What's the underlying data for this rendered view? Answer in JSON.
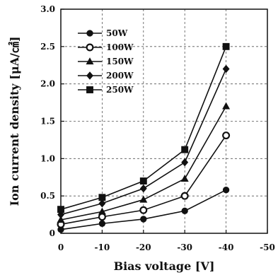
{
  "chart_data": {
    "type": "line",
    "title": "",
    "xlabel": "Bias voltage [V]",
    "ylabel": "Ion current density [μA/㎠]",
    "x": [
      0,
      -10,
      -20,
      -30,
      -40
    ],
    "xlim": [
      0,
      -50
    ],
    "ylim": [
      0,
      3.0
    ],
    "x_ticks": [
      "0",
      "-10",
      "-20",
      "-30",
      "-40",
      "-50"
    ],
    "y_ticks": [
      "0",
      "0.5",
      "1.0",
      "1.5",
      "2.0",
      "2.5",
      "3.0"
    ],
    "grid": true,
    "legend_position": "top-left",
    "series": [
      {
        "name": "50W",
        "marker": "circle-filled",
        "values": [
          0.05,
          0.13,
          0.19,
          0.3,
          0.58
        ]
      },
      {
        "name": "100W",
        "marker": "circle-open",
        "values": [
          0.12,
          0.22,
          0.31,
          0.5,
          1.31
        ]
      },
      {
        "name": "150W",
        "marker": "triangle",
        "values": [
          0.18,
          0.29,
          0.45,
          0.73,
          1.7
        ]
      },
      {
        "name": "200W",
        "marker": "diamond",
        "values": [
          0.25,
          0.4,
          0.6,
          0.95,
          2.2
        ]
      },
      {
        "name": "250W",
        "marker": "square",
        "values": [
          0.32,
          0.48,
          0.7,
          1.12,
          2.5
        ]
      }
    ]
  }
}
